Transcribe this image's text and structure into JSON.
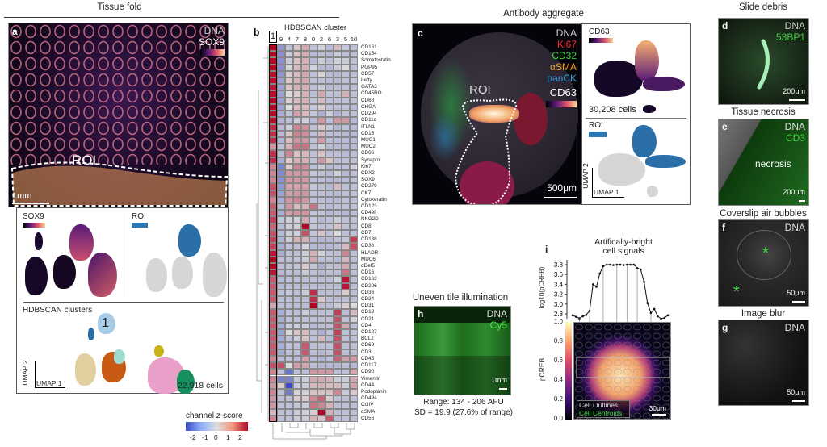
{
  "panel_a": {
    "section_title": "Tissue fold",
    "letter": "a",
    "channels": [
      "DNA",
      "SOX9"
    ],
    "roi": "ROI",
    "scale": "1mm",
    "umap_sox9": "SOX9",
    "umap_roi": "ROI",
    "clusters_title": "HDBSCAN clusters",
    "cluster_label": "1",
    "umap1": "UMAP 1",
    "umap2": "UMAP 2",
    "cells": "22,918 cells",
    "roi_color": "#2a77b4"
  },
  "zscore_bar": {
    "title": "channel z-score",
    "ticks": [
      "-2",
      "-1",
      "0",
      "1",
      "2"
    ],
    "colors": [
      "#3b4cc0",
      "#dddddd",
      "#b40426"
    ]
  },
  "panel_b": {
    "letter": "b",
    "title": "HDBSCAN cluster",
    "chart_data": {
      "type": "heatmap",
      "title": "HDBSCAN cluster",
      "highlighted_column": "1",
      "columns": [
        "1",
        "9",
        "4",
        "7",
        "8",
        "0",
        "2",
        "6",
        "3",
        "5",
        "10"
      ],
      "rows": [
        "CD161",
        "CD154",
        "Somatostatin",
        "PGP95",
        "CD57",
        "Lefty",
        "GATA3",
        "CD45RO",
        "CD68",
        "CHGA",
        "CD294",
        "CD11c",
        "ITLN1",
        "CD15",
        "MUC1",
        "MUC2",
        "CD66",
        "Synapto",
        "Ki67",
        "CDX2",
        "SOX9",
        "CD279",
        "CK7",
        "Cytokeratin",
        "CD123",
        "CD49f",
        "NKG2D",
        "CD8",
        "CD7",
        "CD138",
        "CD38",
        "HLADR",
        "MUC6",
        "αDef5",
        "CD16",
        "CD163",
        "CD206",
        "CD36",
        "CD34",
        "CD31",
        "CD19",
        "CD21",
        "CD4",
        "CD127",
        "BCL2",
        "CD69",
        "CD3",
        "CD45",
        "CD117",
        "CD90",
        "Vimentin",
        "CD44",
        "Podoplanin",
        "CD49a",
        "ColIV",
        "αSMA",
        "CD56"
      ],
      "values": [
        [
          2.5,
          -1.2,
          -0.5,
          0.3,
          0.6,
          -0.5,
          -0.2,
          -0.6,
          0.4,
          -0.4,
          -0.5
        ],
        [
          2.5,
          -1.3,
          -0.3,
          0.3,
          0.5,
          -0.6,
          -0.5,
          -0.6,
          -0.3,
          -0.5,
          -0.5
        ],
        [
          2.5,
          -1.3,
          -0.3,
          0.3,
          0.5,
          -0.6,
          -0.3,
          -0.5,
          -0.2,
          -0.3,
          -0.5
        ],
        [
          2.5,
          -1.3,
          -0.1,
          0.4,
          0.5,
          -0.2,
          -0.6,
          -0.6,
          -0.3,
          -0.1,
          -0.5
        ],
        [
          2.4,
          -1.2,
          0.2,
          0.4,
          0.6,
          -0.5,
          0.1,
          -0.6,
          -0.6,
          -0.5,
          -0.5
        ],
        [
          2.4,
          -1.0,
          0.3,
          0.5,
          0.6,
          -0.5,
          -0.5,
          -0.6,
          -0.6,
          -0.5,
          -0.4
        ],
        [
          2.3,
          -1.0,
          0.3,
          0.5,
          0.5,
          -0.5,
          -0.3,
          -0.6,
          -0.5,
          -0.5,
          -0.5
        ],
        [
          2.4,
          -1.0,
          0.0,
          0.2,
          0.5,
          -0.5,
          0.6,
          -0.5,
          -0.5,
          0.5,
          -0.5
        ],
        [
          2.5,
          -1.0,
          0.2,
          0.4,
          0.5,
          -0.5,
          0.4,
          -0.5,
          -0.5,
          -0.5,
          -0.5
        ],
        [
          2.5,
          -1.0,
          0.0,
          0.4,
          0.4,
          -0.4,
          0.2,
          -0.5,
          -0.5,
          -0.5,
          -0.6
        ],
        [
          2.4,
          -0.8,
          -0.5,
          0.7,
          0.4,
          -0.4,
          -0.8,
          -0.3,
          -0.7,
          -0.5,
          -0.5
        ],
        [
          2.4,
          -0.7,
          -0.5,
          -0.3,
          -0.2,
          -0.6,
          0.8,
          -0.5,
          0.8,
          0.8,
          -0.6
        ],
        [
          2.0,
          -0.6,
          -0.3,
          1.0,
          0.9,
          -0.5,
          0.2,
          -0.4,
          -0.7,
          -0.5,
          -0.6
        ],
        [
          2.0,
          -0.6,
          0.3,
          1.0,
          0.9,
          -0.5,
          0.4,
          -0.5,
          -0.5,
          -0.6,
          -0.6
        ],
        [
          2.0,
          -0.7,
          0.4,
          0.8,
          0.8,
          -0.5,
          0.8,
          -0.6,
          -0.6,
          -0.6,
          -0.6
        ],
        [
          0.8,
          -0.5,
          0.5,
          1.2,
          1.2,
          -0.5,
          -0.2,
          -0.6,
          -0.6,
          -0.6,
          -0.6
        ],
        [
          2.0,
          -0.6,
          1.0,
          0.3,
          0.4,
          -0.5,
          0.3,
          -0.5,
          -0.5,
          -0.6,
          -0.5
        ],
        [
          2.0,
          -0.8,
          0.2,
          0.5,
          0.5,
          -0.5,
          0.8,
          0.3,
          -0.5,
          -0.5,
          -0.5
        ],
        [
          1.0,
          -1.5,
          0.2,
          1.0,
          0.9,
          -0.5,
          -0.3,
          -0.6,
          -0.5,
          -0.5,
          -0.2
        ],
        [
          1.0,
          -1.4,
          0.8,
          0.8,
          0.8,
          -0.4,
          -0.5,
          -0.6,
          -0.2,
          -0.6,
          -0.5
        ],
        [
          1.0,
          -1.3,
          0.8,
          0.8,
          0.8,
          -0.5,
          -0.5,
          -0.6,
          -0.6,
          -0.6,
          -0.5
        ],
        [
          1.6,
          -1.2,
          0.7,
          0.7,
          0.7,
          -0.4,
          -0.5,
          -0.6,
          0.4,
          -0.5,
          -0.5
        ],
        [
          1.6,
          -1.0,
          0.7,
          0.8,
          0.8,
          -0.5,
          -0.5,
          -0.6,
          -0.6,
          -0.5,
          -0.5
        ],
        [
          1.0,
          -0.8,
          0.8,
          1.0,
          0.8,
          -0.5,
          -0.5,
          -0.6,
          -0.6,
          -0.5,
          -0.5
        ],
        [
          1.5,
          -0.6,
          0.8,
          0.4,
          0.5,
          1.2,
          -0.5,
          -0.6,
          -0.5,
          -0.5,
          -0.5
        ],
        [
          1.5,
          -0.8,
          0.7,
          0.8,
          0.8,
          -0.4,
          -0.4,
          -0.6,
          -0.5,
          -0.6,
          -0.5
        ],
        [
          1.8,
          -0.4,
          -0.3,
          -0.2,
          0.6,
          -0.4,
          -0.6,
          -0.5,
          -0.3,
          -0.5,
          -0.5
        ],
        [
          1.4,
          -0.6,
          -0.3,
          -0.2,
          2.5,
          -0.4,
          -0.5,
          -0.5,
          0.3,
          -0.5,
          -0.5
        ],
        [
          1.6,
          -0.6,
          -0.3,
          -0.2,
          1.6,
          -0.4,
          0.3,
          -0.5,
          0.0,
          -0.5,
          -0.5
        ],
        [
          1.8,
          -0.7,
          -0.3,
          0.5,
          0.5,
          -0.6,
          -0.6,
          -0.6,
          -0.5,
          -0.4,
          1.8
        ],
        [
          1.8,
          -0.8,
          -0.5,
          -0.5,
          -0.2,
          -0.6,
          -0.6,
          -0.6,
          -0.5,
          0.4,
          1.6
        ],
        [
          2.3,
          -0.8,
          -0.5,
          -0.5,
          -0.3,
          0.5,
          -0.2,
          -0.5,
          -0.5,
          1.0,
          -0.5
        ],
        [
          2.8,
          -0.5,
          -0.5,
          -0.4,
          -0.3,
          0.6,
          -0.5,
          -0.5,
          -0.6,
          0.4,
          -0.5
        ],
        [
          2.8,
          -0.5,
          -0.5,
          -0.4,
          0.2,
          -0.4,
          -0.8,
          -0.5,
          -0.5,
          0.6,
          -0.5
        ],
        [
          2.3,
          -0.6,
          -0.5,
          -0.5,
          -0.3,
          -0.5,
          -0.6,
          -0.5,
          -0.5,
          1.2,
          -0.5
        ],
        [
          1.5,
          -0.6,
          -0.5,
          -0.5,
          -0.5,
          -0.5,
          -0.5,
          -0.5,
          -0.2,
          2.3,
          -0.5
        ],
        [
          1.5,
          -0.6,
          -0.5,
          -0.5,
          -0.5,
          -0.5,
          -0.5,
          -0.5,
          -0.5,
          2.3,
          -0.5
        ],
        [
          1.5,
          -0.5,
          -0.4,
          -0.5,
          -0.3,
          2.0,
          -0.5,
          -0.5,
          -0.5,
          0.2,
          -0.5
        ],
        [
          1.5,
          -0.5,
          -0.5,
          -0.5,
          -0.5,
          2.0,
          0.2,
          -0.5,
          -0.5,
          -0.5,
          -0.5
        ],
        [
          0.6,
          -0.5,
          -0.5,
          -0.5,
          -0.5,
          2.5,
          -0.5,
          -0.5,
          -0.3,
          0.2,
          0.0
        ],
        [
          1.5,
          -0.8,
          -0.5,
          -0.5,
          -0.3,
          -0.5,
          -0.5,
          -0.5,
          1.8,
          -0.5,
          0.4
        ],
        [
          1.5,
          -0.8,
          -0.5,
          -0.5,
          -0.5,
          -0.5,
          -0.5,
          -0.5,
          1.6,
          -0.5,
          -0.2
        ],
        [
          1.5,
          -0.8,
          -0.3,
          -0.3,
          -0.3,
          -0.6,
          -0.5,
          -0.5,
          1.6,
          0.6,
          -0.5
        ],
        [
          1.5,
          -1.0,
          -0.1,
          0.3,
          0.4,
          -0.5,
          -0.8,
          -0.5,
          1.8,
          -0.5,
          -0.5
        ],
        [
          1.5,
          -0.9,
          -0.5,
          -0.3,
          0.3,
          -0.5,
          0.4,
          -0.6,
          1.6,
          -0.5,
          -0.5
        ],
        [
          1.5,
          -0.8,
          -0.5,
          -0.5,
          1.5,
          -0.5,
          -0.5,
          -0.5,
          1.6,
          -0.5,
          -0.5
        ],
        [
          1.5,
          -0.8,
          -0.5,
          -0.5,
          1.5,
          -0.5,
          -0.6,
          -0.5,
          1.6,
          -0.5,
          -0.5
        ],
        [
          1.0,
          -0.6,
          -0.5,
          -0.6,
          0.7,
          -0.6,
          -0.7,
          -0.5,
          1.4,
          0.7,
          0.8
        ],
        [
          1.6,
          1.6,
          0.0,
          0.7,
          0.6,
          -0.5,
          -0.6,
          -0.6,
          -0.6,
          -0.5,
          -0.6
        ],
        [
          1.0,
          -0.5,
          -1.8,
          -0.5,
          -0.5,
          0.8,
          0.8,
          0.8,
          -0.5,
          -0.5,
          0.6
        ],
        [
          1.0,
          -1.5,
          -1.5,
          -0.4,
          -0.3,
          0.6,
          0.6,
          0.5,
          -0.3,
          -0.3,
          0.6
        ],
        [
          0.8,
          0.2,
          -2.5,
          -0.3,
          -0.3,
          0.4,
          0.5,
          0.4,
          0.4,
          -0.3,
          0.7
        ],
        [
          1.0,
          -0.5,
          -1.7,
          -0.1,
          -0.2,
          0.3,
          0.3,
          0.3,
          1.0,
          -0.3,
          0.2
        ],
        [
          0.8,
          -0.5,
          -0.5,
          0.2,
          0.2,
          1.0,
          1.4,
          0.2,
          -0.5,
          -0.5,
          -0.5
        ],
        [
          0.8,
          -0.5,
          -0.5,
          -0.4,
          -0.3,
          1.2,
          1.0,
          0.5,
          -0.5,
          -0.5,
          -0.5
        ],
        [
          0.4,
          -0.5,
          -0.5,
          -0.3,
          -0.2,
          0.2,
          2.5,
          0.5,
          -0.5,
          -0.5,
          -0.5
        ],
        [
          1.0,
          -0.5,
          -0.5,
          -0.3,
          -0.3,
          0.5,
          0.3,
          1.5,
          -0.5,
          -0.5,
          -0.5
        ]
      ],
      "zlim": [
        -2.5,
        2.5
      ]
    }
  },
  "panel_c": {
    "section_title": "Antibody aggregate",
    "letter": "c",
    "channels": [
      {
        "name": "DNA",
        "color": "#cccccc"
      },
      {
        "name": "Ki67",
        "color": "#ff3030"
      },
      {
        "name": "CD32",
        "color": "#33dd33"
      },
      {
        "name": "αSMA",
        "color": "#f0a020"
      },
      {
        "name": "panCK",
        "color": "#30a0e0"
      },
      {
        "name": "CD63",
        "color": "#ffffff"
      }
    ],
    "roi": "ROI",
    "scale": "500μm",
    "umap_cd63": "CD63",
    "cells": "30,208 cells",
    "umap_roi": "ROI",
    "umap1": "UMAP 1",
    "umap2": "UMAP 2"
  },
  "panel_d": {
    "title": "Slide debris",
    "letter": "d",
    "channels": [
      "DNA",
      "53BP1"
    ],
    "scale": "200μm"
  },
  "panel_e": {
    "title": "Tissue necrosis",
    "letter": "e",
    "channels": [
      "DNA",
      "CD3"
    ],
    "label": "necrosis",
    "scale": "200μm"
  },
  "panel_f": {
    "title": "Coverslip air bubbles",
    "letter": "f",
    "channels": [
      "DNA"
    ],
    "marker": "*",
    "scale": "50μm"
  },
  "panel_g": {
    "title": "Image blur",
    "letter": "g",
    "channels": [
      "DNA"
    ],
    "scale": "50μm"
  },
  "panel_h": {
    "title": "Uneven tile illumination",
    "letter": "h",
    "channels": [
      "DNA",
      "Cy5"
    ],
    "scale": "1mm",
    "range": "Range: 134 - 206 AFU",
    "sd": "SD = 19.9 (27.6% of range)"
  },
  "panel_i": {
    "letter": "i",
    "title_line1": "Artifically-bright",
    "title_line2": "cell signals",
    "legend_outlines": "Cell Outlines",
    "legend_centroids": "Cell Centroids",
    "scale": "30μm",
    "colorbar": {
      "label": "pCREB",
      "ticks": [
        "0.0",
        "0.2",
        "0.4",
        "0.6",
        "0.8",
        "1.0"
      ]
    },
    "chart_data": {
      "type": "line",
      "ylabel": "log10(pCREB)",
      "yticks": [
        "2.8",
        "3.0",
        "3.2",
        "3.4",
        "3.6",
        "3.8"
      ],
      "ylim": [
        2.7,
        3.85
      ],
      "y": [
        2.77,
        2.74,
        2.71,
        2.75,
        2.78,
        2.86,
        3.4,
        3.35,
        3.62,
        3.77,
        3.8,
        3.8,
        3.79,
        3.8,
        3.8,
        3.79,
        3.8,
        3.8,
        3.8,
        3.73,
        3.7,
        3.45,
        3.02,
        2.82,
        2.9,
        2.75,
        2.7,
        2.72,
        2.77
      ]
    }
  }
}
